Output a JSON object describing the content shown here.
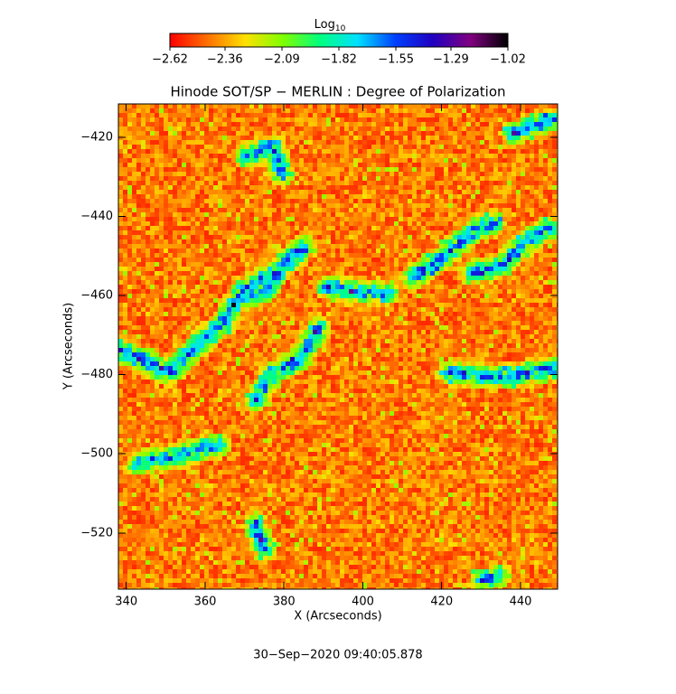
{
  "chart_data": {
    "type": "heatmap",
    "title": "Hinode SOT/SP − MERLIN : Degree of Polarization",
    "x_label": "X (Arcseconds)",
    "y_label": "Y (Arcseconds)",
    "footer": "30−Sep−2020 09:40:05.878",
    "colorbar_label": "Log",
    "colorbar_label_sub": "10",
    "clim": [
      -2.62,
      -1.02
    ],
    "cticks": [
      {
        "value": -2.62,
        "label": "−2.62"
      },
      {
        "value": -2.36,
        "label": "−2.36"
      },
      {
        "value": -2.09,
        "label": "−2.09"
      },
      {
        "value": -1.82,
        "label": "−1.82"
      },
      {
        "value": -1.55,
        "label": "−1.55"
      },
      {
        "value": -1.29,
        "label": "−1.29"
      },
      {
        "value": -1.02,
        "label": "−1.02"
      }
    ],
    "colormap": [
      "#ff0000",
      "#ff7000",
      "#ffe000",
      "#80ff00",
      "#00ff80",
      "#00e0ff",
      "#0040ff",
      "#2000c0",
      "#800080",
      "#000000"
    ],
    "xlim": [
      338,
      449.4
    ],
    "xticks": [
      340,
      360,
      380,
      400,
      420,
      440
    ],
    "ylim": [
      -534.2,
      -411.6
    ],
    "yticks": [
      {
        "value": -420,
        "label": "−420"
      },
      {
        "value": -440,
        "label": "−440"
      },
      {
        "value": -460,
        "label": "−460"
      },
      {
        "value": -480,
        "label": "−480"
      },
      {
        "value": -500,
        "label": "−500"
      },
      {
        "value": -520,
        "label": "−520"
      }
    ]
  }
}
